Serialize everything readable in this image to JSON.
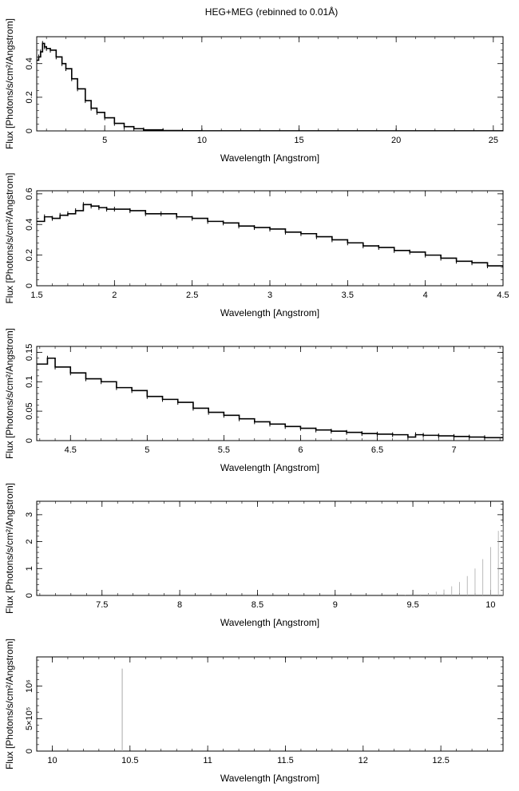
{
  "figure": {
    "title": "HEG+MEG (rebinned to 0.01Å)"
  },
  "chart_data": [
    {
      "type": "line",
      "title": "",
      "xlabel": "Wavelength [Angstrom]",
      "ylabel": "Flux [Photons/s/cm²/Angstrom]",
      "xlim": [
        1.5,
        25.5
      ],
      "ylim": [
        0,
        0.56
      ],
      "xticks": [
        {
          "v": 5,
          "label": "5"
        },
        {
          "v": 10,
          "label": "10"
        },
        {
          "v": 15,
          "label": "15"
        },
        {
          "v": 20,
          "label": "20"
        },
        {
          "v": 25,
          "label": "25"
        }
      ],
      "yticks": [
        {
          "v": 0,
          "label": "0"
        },
        {
          "v": 0.2,
          "label": "0.2"
        },
        {
          "v": 0.4,
          "label": "0.4"
        }
      ],
      "grid": false,
      "series": [
        {
          "style": "step",
          "x": [
            1.5,
            1.6,
            1.7,
            1.8,
            1.9,
            2.0,
            2.2,
            2.5,
            2.8,
            3.0,
            3.3,
            3.6,
            4.0,
            4.3,
            4.6,
            5.0,
            5.5,
            6.0,
            6.5,
            7.0,
            8.0,
            9.0,
            10.0,
            15.0,
            20.0,
            25.5
          ],
          "y": [
            0.42,
            0.44,
            0.47,
            0.52,
            0.5,
            0.49,
            0.48,
            0.44,
            0.4,
            0.37,
            0.31,
            0.25,
            0.18,
            0.135,
            0.11,
            0.078,
            0.045,
            0.025,
            0.013,
            0.006,
            0.002,
            0.001,
            0.0005,
            0.0003,
            0.0002,
            0.0002
          ]
        }
      ]
    },
    {
      "type": "line",
      "title": "",
      "xlabel": "Wavelength [Angstrom]",
      "ylabel": "Flux [Photons/s/cm²/Angstrom]",
      "xlim": [
        1.5,
        4.5
      ],
      "ylim": [
        0,
        0.62
      ],
      "xticks": [
        {
          "v": 1.5,
          "label": "1.5"
        },
        {
          "v": 2,
          "label": "2"
        },
        {
          "v": 2.5,
          "label": "2.5"
        },
        {
          "v": 3,
          "label": "3"
        },
        {
          "v": 3.5,
          "label": "3.5"
        },
        {
          "v": 4,
          "label": "4"
        },
        {
          "v": 4.5,
          "label": "4.5"
        }
      ],
      "yticks": [
        {
          "v": 0,
          "label": "0"
        },
        {
          "v": 0.2,
          "label": "0.2"
        },
        {
          "v": 0.4,
          "label": "0.4"
        },
        {
          "v": 0.6,
          "label": "0.6"
        }
      ],
      "grid": false,
      "series": [
        {
          "style": "step",
          "x": [
            1.5,
            1.55,
            1.6,
            1.65,
            1.7,
            1.75,
            1.8,
            1.85,
            1.9,
            1.95,
            2.0,
            2.1,
            2.2,
            2.3,
            2.4,
            2.5,
            2.6,
            2.7,
            2.8,
            2.9,
            3.0,
            3.1,
            3.2,
            3.3,
            3.4,
            3.5,
            3.6,
            3.7,
            3.8,
            3.9,
            4.0,
            4.1,
            4.2,
            4.3,
            4.4,
            4.5
          ],
          "y": [
            0.42,
            0.45,
            0.44,
            0.46,
            0.47,
            0.49,
            0.53,
            0.52,
            0.51,
            0.5,
            0.5,
            0.49,
            0.47,
            0.47,
            0.45,
            0.44,
            0.42,
            0.41,
            0.39,
            0.38,
            0.37,
            0.35,
            0.34,
            0.32,
            0.3,
            0.28,
            0.26,
            0.25,
            0.23,
            0.22,
            0.2,
            0.18,
            0.16,
            0.15,
            0.13,
            0.12
          ]
        }
      ]
    },
    {
      "type": "line",
      "title": "",
      "xlabel": "Wavelength [Angstrom]",
      "ylabel": "Flux [Photons/s/cm²/Angstrom]",
      "xlim": [
        4.28,
        7.32
      ],
      "ylim": [
        0,
        0.16
      ],
      "xticks": [
        {
          "v": 4.5,
          "label": "4.5"
        },
        {
          "v": 5,
          "label": "5"
        },
        {
          "v": 5.5,
          "label": "5.5"
        },
        {
          "v": 6,
          "label": "6"
        },
        {
          "v": 6.5,
          "label": "6.5"
        },
        {
          "v": 7,
          "label": "7"
        }
      ],
      "yticks": [
        {
          "v": 0,
          "label": "0"
        },
        {
          "v": 0.05,
          "label": "0.05"
        },
        {
          "v": 0.1,
          "label": "0.1"
        },
        {
          "v": 0.15,
          "label": "0.15"
        }
      ],
      "grid": false,
      "series": [
        {
          "style": "step",
          "x": [
            4.28,
            4.35,
            4.4,
            4.5,
            4.6,
            4.7,
            4.8,
            4.9,
            5.0,
            5.1,
            5.2,
            5.3,
            5.4,
            5.5,
            5.6,
            5.7,
            5.8,
            5.9,
            6.0,
            6.1,
            6.2,
            6.3,
            6.4,
            6.5,
            6.6,
            6.7,
            6.75,
            6.8,
            6.9,
            7.0,
            7.1,
            7.2,
            7.32
          ],
          "y": [
            0.13,
            0.14,
            0.125,
            0.115,
            0.105,
            0.1,
            0.09,
            0.085,
            0.075,
            0.07,
            0.065,
            0.055,
            0.048,
            0.043,
            0.037,
            0.032,
            0.028,
            0.024,
            0.021,
            0.018,
            0.016,
            0.014,
            0.012,
            0.011,
            0.01,
            0.006,
            0.01,
            0.009,
            0.008,
            0.007,
            0.006,
            0.005,
            0.004
          ]
        }
      ]
    },
    {
      "type": "line",
      "title": "",
      "xlabel": "Wavelength [Angstrom]",
      "ylabel": "Flux [Photons/s/cm²/Angstrom]",
      "xlim": [
        7.08,
        10.08
      ],
      "ylim": [
        0,
        3.5
      ],
      "xticks": [
        {
          "v": 7.5,
          "label": "7.5"
        },
        {
          "v": 8,
          "label": "8"
        },
        {
          "v": 8.5,
          "label": "8.5"
        },
        {
          "v": 9,
          "label": "9"
        },
        {
          "v": 9.5,
          "label": "9.5"
        },
        {
          "v": 10,
          "label": "10"
        }
      ],
      "yticks": [
        {
          "v": 0,
          "label": "0"
        },
        {
          "v": 1,
          "label": "1"
        },
        {
          "v": 2,
          "label": "2"
        },
        {
          "v": 3,
          "label": "3"
        }
      ],
      "grid": false,
      "series": [
        {
          "style": "errorbars",
          "x": [
            9.45,
            9.5,
            9.55,
            9.6,
            9.65,
            9.7,
            9.75,
            9.8,
            9.85,
            9.9,
            9.95,
            10.0,
            10.05,
            10.08
          ],
          "y": [
            0.01,
            0.02,
            0.04,
            0.08,
            0.14,
            0.22,
            0.34,
            0.5,
            0.72,
            1.0,
            1.35,
            1.8,
            2.4,
            2.7
          ]
        }
      ]
    },
    {
      "type": "line",
      "title": "",
      "xlabel": "Wavelength [Angstrom]",
      "ylabel": "Flux [Photons/s/cm²/Angstrom]",
      "xlim": [
        9.9,
        12.9
      ],
      "ylim": [
        0,
        1450000
      ],
      "xticks": [
        {
          "v": 10,
          "label": "10"
        },
        {
          "v": 10.5,
          "label": "10.5"
        },
        {
          "v": 11,
          "label": "11"
        },
        {
          "v": 11.5,
          "label": "11.5"
        },
        {
          "v": 12,
          "label": "12"
        },
        {
          "v": 12.5,
          "label": "12.5"
        }
      ],
      "yticks": [
        {
          "v": 0,
          "label": "0"
        },
        {
          "v": 500000,
          "label": "5×10⁵"
        },
        {
          "v": 1000000,
          "label": "10⁶"
        }
      ],
      "grid": false,
      "series": [
        {
          "style": "spike",
          "x": [
            10.45
          ],
          "y": [
            1270000
          ]
        }
      ]
    }
  ]
}
